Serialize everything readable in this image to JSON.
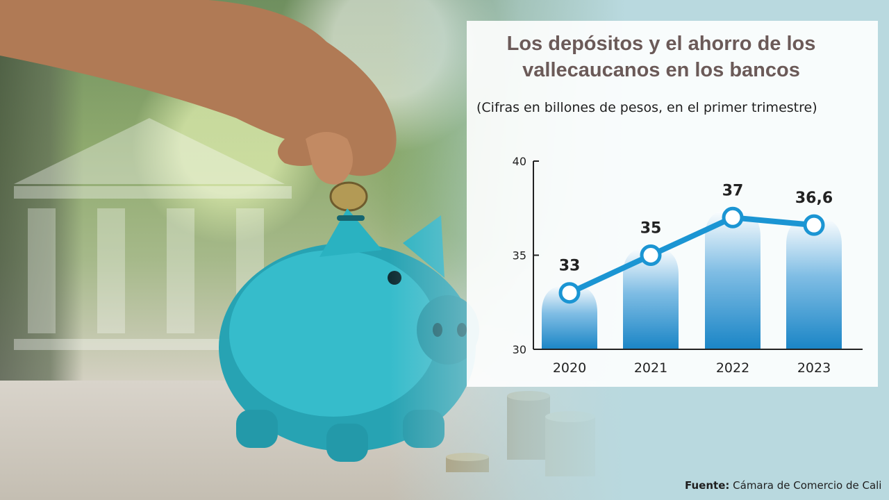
{
  "chart_data": {
    "type": "bar",
    "title_line1": "Los depósitos y el ahorro de los",
    "title_line2": "vallecaucanos en los bancos",
    "subtitle": "(Cifras en billones de pesos, en el primer trimestre)",
    "categories": [
      "2020",
      "2021",
      "2022",
      "2023"
    ],
    "values": [
      33,
      35,
      37,
      36.6
    ],
    "data_labels": [
      "33",
      "35",
      "37",
      "36,6"
    ],
    "ylim": [
      30,
      40
    ],
    "yticks": [
      30,
      35,
      40
    ],
    "overlay": "line",
    "bar_color": "#1a85c6",
    "line_color": "#1b95d3",
    "xlabel": "",
    "ylabel": ""
  },
  "source": {
    "label": "Fuente:",
    "text": "Cámara de Comercio de Cali"
  }
}
